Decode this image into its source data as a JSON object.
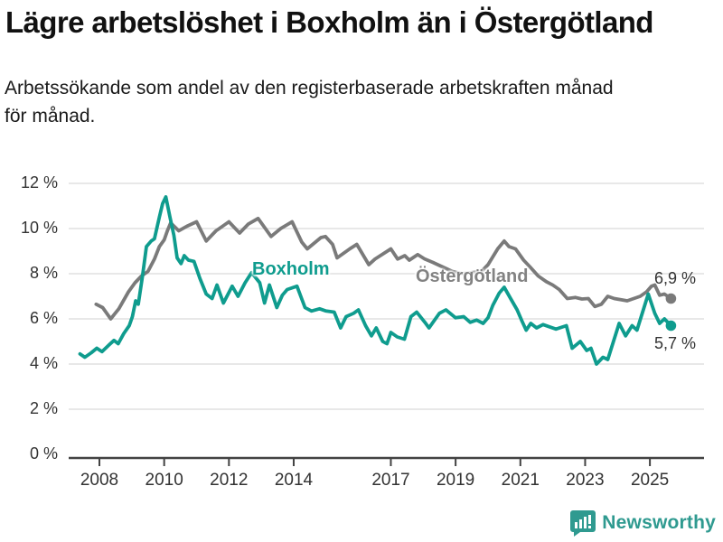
{
  "header": {
    "title": "Lägre arbetslöshet i Boxholm än i Östergötland",
    "subtitle_lines": [
      "Arbetssökande som andel av den registerbaserade arbetskraften månad",
      "för månad."
    ]
  },
  "chart_data": {
    "type": "line",
    "title": "Lägre arbetslöshet i Boxholm än i Östergötland",
    "subtitle": "Arbetssökande som andel av den registerbaserade arbetskraften månad för månad.",
    "xlabel": "",
    "ylabel": "",
    "ylim": [
      0,
      12
    ],
    "xlim": [
      2007.0,
      2026.7
    ],
    "grid": "horizontal",
    "legend_position": "inline-labels",
    "y_ticks": [
      {
        "value": 0,
        "label": "0 %"
      },
      {
        "value": 2,
        "label": "2 %"
      },
      {
        "value": 4,
        "label": "4 %"
      },
      {
        "value": 6,
        "label": "6 %"
      },
      {
        "value": 8,
        "label": "8 %"
      },
      {
        "value": 10,
        "label": "10 %"
      },
      {
        "value": 12,
        "label": "12 %"
      }
    ],
    "x_ticks": [
      {
        "value": 2008,
        "label": "2008"
      },
      {
        "value": 2010,
        "label": "2010"
      },
      {
        "value": 2012,
        "label": "2012"
      },
      {
        "value": 2014,
        "label": "2014"
      },
      {
        "value": 2017,
        "label": "2017"
      },
      {
        "value": 2019,
        "label": "2019"
      },
      {
        "value": 2021,
        "label": "2021"
      },
      {
        "value": 2023,
        "label": "2023"
      },
      {
        "value": 2025,
        "label": "2025"
      }
    ],
    "series": [
      {
        "name": "Boxholm",
        "color": "#0f9c8e",
        "end_label": "5,7 %",
        "end_value": 5.7,
        "points": [
          [
            2007.4,
            4.45
          ],
          [
            2007.55,
            4.3
          ],
          [
            2007.75,
            4.5
          ],
          [
            2007.92,
            4.7
          ],
          [
            2008.08,
            4.55
          ],
          [
            2008.3,
            4.85
          ],
          [
            2008.45,
            5.05
          ],
          [
            2008.58,
            4.9
          ],
          [
            2008.75,
            5.35
          ],
          [
            2008.92,
            5.7
          ],
          [
            2009.02,
            6.1
          ],
          [
            2009.12,
            6.8
          ],
          [
            2009.2,
            6.65
          ],
          [
            2009.33,
            7.9
          ],
          [
            2009.45,
            9.2
          ],
          [
            2009.6,
            9.45
          ],
          [
            2009.7,
            9.55
          ],
          [
            2009.85,
            10.5
          ],
          [
            2009.95,
            11.1
          ],
          [
            2010.05,
            11.4
          ],
          [
            2010.18,
            10.5
          ],
          [
            2010.3,
            9.7
          ],
          [
            2010.4,
            8.7
          ],
          [
            2010.52,
            8.45
          ],
          [
            2010.62,
            8.8
          ],
          [
            2010.75,
            8.6
          ],
          [
            2010.92,
            8.55
          ],
          [
            2011.1,
            7.8
          ],
          [
            2011.3,
            7.1
          ],
          [
            2011.48,
            6.9
          ],
          [
            2011.63,
            7.5
          ],
          [
            2011.83,
            6.7
          ],
          [
            2012.1,
            7.45
          ],
          [
            2012.28,
            7.0
          ],
          [
            2012.5,
            7.6
          ],
          [
            2012.7,
            8.05
          ],
          [
            2012.95,
            7.6
          ],
          [
            2013.1,
            6.7
          ],
          [
            2013.25,
            7.5
          ],
          [
            2013.48,
            6.5
          ],
          [
            2013.65,
            7.05
          ],
          [
            2013.8,
            7.3
          ],
          [
            2014.1,
            7.45
          ],
          [
            2014.35,
            6.5
          ],
          [
            2014.55,
            6.35
          ],
          [
            2014.8,
            6.45
          ],
          [
            2015.0,
            6.35
          ],
          [
            2015.25,
            6.3
          ],
          [
            2015.45,
            5.6
          ],
          [
            2015.62,
            6.1
          ],
          [
            2015.85,
            6.25
          ],
          [
            2016.0,
            6.4
          ],
          [
            2016.22,
            5.7
          ],
          [
            2016.4,
            5.25
          ],
          [
            2016.55,
            5.6
          ],
          [
            2016.75,
            5.0
          ],
          [
            2016.88,
            4.9
          ],
          [
            2017.0,
            5.4
          ],
          [
            2017.2,
            5.2
          ],
          [
            2017.42,
            5.1
          ],
          [
            2017.62,
            6.1
          ],
          [
            2017.8,
            6.3
          ],
          [
            2018.05,
            5.85
          ],
          [
            2018.18,
            5.6
          ],
          [
            2018.5,
            6.25
          ],
          [
            2018.7,
            6.4
          ],
          [
            2019.0,
            6.05
          ],
          [
            2019.25,
            6.1
          ],
          [
            2019.45,
            5.85
          ],
          [
            2019.65,
            5.95
          ],
          [
            2019.85,
            5.8
          ],
          [
            2020.0,
            6.05
          ],
          [
            2020.15,
            6.6
          ],
          [
            2020.35,
            7.15
          ],
          [
            2020.5,
            7.4
          ],
          [
            2020.7,
            6.9
          ],
          [
            2020.9,
            6.4
          ],
          [
            2021.05,
            5.9
          ],
          [
            2021.18,
            5.5
          ],
          [
            2021.32,
            5.8
          ],
          [
            2021.5,
            5.6
          ],
          [
            2021.7,
            5.75
          ],
          [
            2021.9,
            5.65
          ],
          [
            2022.1,
            5.55
          ],
          [
            2022.42,
            5.7
          ],
          [
            2022.6,
            4.7
          ],
          [
            2022.85,
            5.0
          ],
          [
            2023.05,
            4.6
          ],
          [
            2023.18,
            4.7
          ],
          [
            2023.35,
            4.0
          ],
          [
            2023.55,
            4.3
          ],
          [
            2023.7,
            4.2
          ],
          [
            2024.05,
            5.8
          ],
          [
            2024.25,
            5.25
          ],
          [
            2024.45,
            5.7
          ],
          [
            2024.6,
            5.5
          ],
          [
            2024.95,
            7.1
          ],
          [
            2025.15,
            6.25
          ],
          [
            2025.3,
            5.8
          ],
          [
            2025.45,
            6.0
          ],
          [
            2025.65,
            5.7
          ]
        ]
      },
      {
        "name": "Östergötland",
        "color": "#7a7a7a",
        "end_label": "6,9 %",
        "end_value": 6.9,
        "points": [
          [
            2007.9,
            6.65
          ],
          [
            2008.1,
            6.5
          ],
          [
            2008.35,
            6.0
          ],
          [
            2008.6,
            6.45
          ],
          [
            2008.9,
            7.2
          ],
          [
            2009.1,
            7.6
          ],
          [
            2009.3,
            7.9
          ],
          [
            2009.5,
            8.1
          ],
          [
            2009.7,
            8.65
          ],
          [
            2009.85,
            9.2
          ],
          [
            2010.0,
            9.5
          ],
          [
            2010.1,
            9.9
          ],
          [
            2010.2,
            10.25
          ],
          [
            2010.45,
            9.9
          ],
          [
            2010.7,
            10.1
          ],
          [
            2011.0,
            10.3
          ],
          [
            2011.3,
            9.45
          ],
          [
            2011.6,
            9.9
          ],
          [
            2011.8,
            10.1
          ],
          [
            2012.0,
            10.3
          ],
          [
            2012.33,
            9.8
          ],
          [
            2012.6,
            10.2
          ],
          [
            2012.9,
            10.45
          ],
          [
            2013.3,
            9.65
          ],
          [
            2013.6,
            10.0
          ],
          [
            2013.95,
            10.3
          ],
          [
            2014.25,
            9.4
          ],
          [
            2014.42,
            9.1
          ],
          [
            2014.84,
            9.6
          ],
          [
            2014.98,
            9.65
          ],
          [
            2015.2,
            9.3
          ],
          [
            2015.34,
            8.7
          ],
          [
            2015.73,
            9.1
          ],
          [
            2015.95,
            9.3
          ],
          [
            2016.32,
            8.4
          ],
          [
            2016.51,
            8.65
          ],
          [
            2017.0,
            9.1
          ],
          [
            2017.21,
            8.65
          ],
          [
            2017.43,
            8.8
          ],
          [
            2017.57,
            8.6
          ],
          [
            2017.83,
            8.85
          ],
          [
            2018.05,
            8.65
          ],
          [
            2018.3,
            8.5
          ],
          [
            2018.6,
            8.3
          ],
          [
            2018.9,
            8.1
          ],
          [
            2019.2,
            8.0
          ],
          [
            2019.5,
            8.05
          ],
          [
            2019.8,
            8.1
          ],
          [
            2020.0,
            8.4
          ],
          [
            2020.3,
            9.1
          ],
          [
            2020.5,
            9.45
          ],
          [
            2020.65,
            9.2
          ],
          [
            2020.85,
            9.1
          ],
          [
            2021.1,
            8.6
          ],
          [
            2021.3,
            8.3
          ],
          [
            2021.55,
            7.9
          ],
          [
            2021.8,
            7.65
          ],
          [
            2022.0,
            7.5
          ],
          [
            2022.2,
            7.3
          ],
          [
            2022.45,
            6.9
          ],
          [
            2022.7,
            6.95
          ],
          [
            2022.9,
            6.88
          ],
          [
            2023.1,
            6.9
          ],
          [
            2023.3,
            6.55
          ],
          [
            2023.5,
            6.65
          ],
          [
            2023.7,
            7.0
          ],
          [
            2023.9,
            6.9
          ],
          [
            2024.1,
            6.85
          ],
          [
            2024.3,
            6.8
          ],
          [
            2024.5,
            6.9
          ],
          [
            2024.7,
            7.0
          ],
          [
            2024.9,
            7.2
          ],
          [
            2025.05,
            7.45
          ],
          [
            2025.15,
            7.5
          ],
          [
            2025.3,
            7.05
          ],
          [
            2025.45,
            7.1
          ],
          [
            2025.65,
            6.9
          ]
        ]
      }
    ]
  },
  "footer": {
    "brand": "Newsworthy",
    "logo_icon": "bar-chart-speech-bubble"
  },
  "colors": {
    "boxholm_line": "#0f9c8e",
    "ostergotland_line": "#7a7a7a",
    "gridline": "#dadada",
    "axis": "#424242",
    "brand_teal": "#2f9a90"
  }
}
